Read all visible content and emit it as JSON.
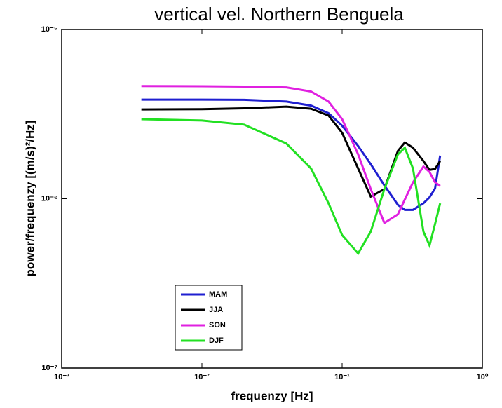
{
  "chart_data": {
    "type": "line",
    "title": "vertical vel. Northern Benguela",
    "xlabel": "frequenzy [Hz]",
    "ylabel": "power/frequenzy [(m/s)²/Hz]",
    "xscale": "log",
    "yscale": "log",
    "grid": false,
    "legend": "lower left",
    "x": [
      0.0037,
      0.01,
      0.02,
      0.04,
      0.06,
      0.08,
      0.1,
      0.13,
      0.16,
      0.2,
      0.25,
      0.28,
      0.32,
      0.38,
      0.42,
      0.46,
      0.5
    ],
    "series": [
      {
        "name": "MAM",
        "color": "#1f1fd0",
        "values": [
          3.85e-06,
          3.85e-06,
          3.84e-06,
          3.75e-06,
          3.55e-06,
          3.2e-06,
          2.7e-06,
          2.05e-06,
          1.6e-06,
          1.2e-06,
          9.2e-07,
          8.6e-07,
          8.6e-07,
          9.4e-07,
          1.02e-06,
          1.15e-06,
          1.8e-06
        ]
      },
      {
        "name": "JJA",
        "color": "#000000",
        "values": [
          3.37e-06,
          3.38e-06,
          3.42e-06,
          3.5e-06,
          3.4e-06,
          3.1e-06,
          2.45e-06,
          1.51e-06,
          1.03e-06,
          1.14e-06,
          1.92e-06,
          2.15e-06,
          2e-06,
          1.67e-06,
          1.48e-06,
          1.5e-06,
          1.67e-06
        ]
      },
      {
        "name": "SON",
        "color": "#e020e0",
        "values": [
          4.63e-06,
          4.62e-06,
          4.6e-06,
          4.55e-06,
          4.3e-06,
          3.75e-06,
          2.95e-06,
          1.83e-06,
          1.14e-06,
          7.2e-07,
          8.1e-07,
          9.9e-07,
          1.25e-06,
          1.55e-06,
          1.44e-06,
          1.25e-06,
          1.19e-06
        ]
      },
      {
        "name": "DJF",
        "color": "#22e022",
        "values": [
          2.95e-06,
          2.9e-06,
          2.74e-06,
          2.12e-06,
          1.51e-06,
          9.4e-07,
          6.1e-07,
          4.75e-07,
          6.4e-07,
          1.14e-06,
          1.83e-06,
          2e-06,
          1.51e-06,
          6.4e-07,
          5.3e-07,
          7.1e-07,
          9.4e-07
        ]
      }
    ],
    "xlim": [
      0.001,
      1
    ],
    "ylim": [
      1e-07,
      1e-05
    ],
    "xticks": [
      {
        "value": 0.001,
        "label": "10⁻³"
      },
      {
        "value": 0.01,
        "label": "10⁻²"
      },
      {
        "value": 0.1,
        "label": "10⁻¹"
      },
      {
        "value": 1,
        "label": "10⁰"
      }
    ],
    "yticks": [
      {
        "value": 1e-07,
        "label": "10⁻⁷"
      },
      {
        "value": 1e-06,
        "label": "10⁻⁶"
      },
      {
        "value": 1e-05,
        "label": "10⁻⁵"
      }
    ]
  }
}
